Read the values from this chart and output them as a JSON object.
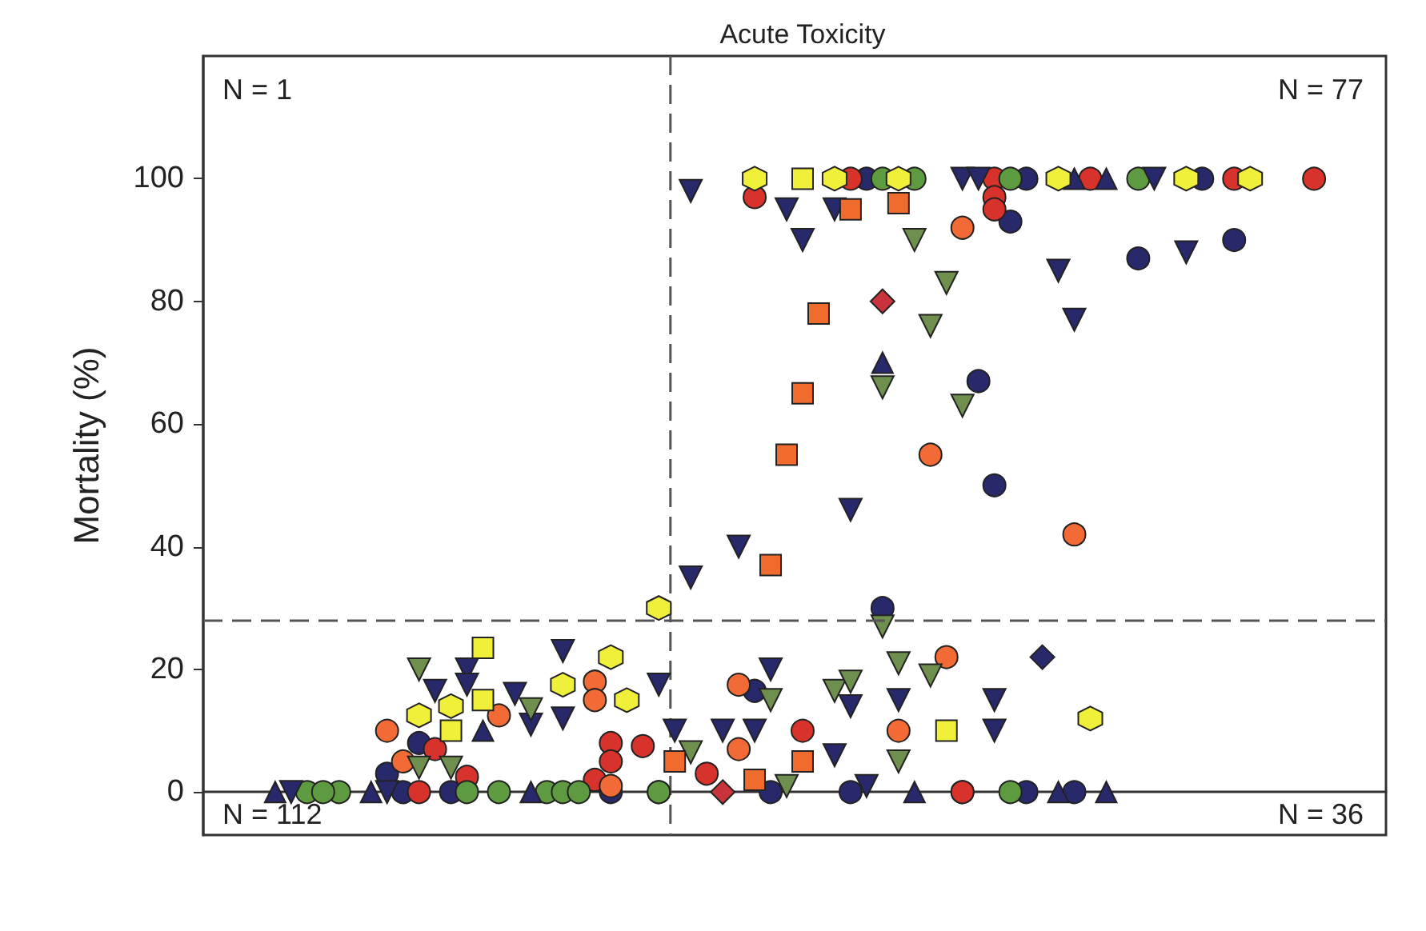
{
  "chart_data": {
    "type": "scatter",
    "title": "Acute Toxicity",
    "ylabel": "Mortality (%)",
    "categories": [
      null,
      null,
      null,
      null,
      null,
      null,
      null,
      null,
      null,
      null,
      null,
      null,
      null,
      null,
      null,
      null,
      null,
      null,
      null,
      null,
      null,
      null,
      null,
      null,
      null,
      null,
      null,
      null,
      null,
      null,
      null,
      null,
      null,
      null,
      null,
      null,
      null,
      null,
      null,
      null,
      null,
      null,
      null,
      null,
      null,
      null,
      null,
      null,
      null,
      null,
      null,
      null,
      null,
      null,
      null,
      null,
      null,
      null,
      null,
      null,
      null,
      null,
      null,
      null,
      null,
      null,
      null,
      null,
      null,
      null,
      null,
      null,
      null,
      null
    ],
    "ylim": [
      -7,
      120
    ],
    "yticks": [
      0,
      20,
      40,
      60,
      80,
      100
    ],
    "grid": false,
    "tick_labels": "y",
    "ref_lines": [
      {
        "axis": "y",
        "value": 28,
        "line_style": "dashed",
        "color": "#555555"
      }
    ],
    "annotations": [
      "N = 1",
      "N = 77",
      "N = 112",
      "N = 36"
    ],
    "series": [
      {
        "marker": "circle",
        "color": "#27296b",
        "values": [
          null,
          null,
          null,
          null,
          null,
          null,
          null,
          null,
          null,
          null,
          null,
          3,
          0,
          8,
          null,
          0,
          null,
          null,
          null,
          null,
          null,
          null,
          null,
          null,
          null,
          0,
          null,
          null,
          0,
          null,
          null,
          null,
          null,
          null,
          16.5,
          0,
          null,
          null,
          null,
          null,
          0,
          100,
          30,
          null,
          null,
          null,
          null,
          0,
          67,
          50,
          93,
          100,
          null,
          null,
          0,
          null,
          null,
          null,
          87,
          null,
          null,
          null,
          100,
          null,
          90,
          null,
          null,
          null,
          null,
          null,
          null,
          null,
          null,
          null
        ]
      },
      {
        "marker": "circle",
        "color": "#27296b",
        "values": [
          null,
          null,
          null,
          null,
          null,
          null,
          null,
          null,
          null,
          null,
          null,
          null,
          null,
          null,
          null,
          null,
          null,
          null,
          null,
          null,
          null,
          null,
          null,
          null,
          null,
          null,
          null,
          null,
          null,
          null,
          null,
          null,
          null,
          null,
          null,
          null,
          null,
          null,
          null,
          null,
          null,
          null,
          null,
          null,
          null,
          null,
          null,
          null,
          null,
          null,
          null,
          0,
          null,
          null,
          null,
          null,
          null,
          null,
          null,
          null,
          null,
          null,
          null,
          null,
          null,
          null,
          null,
          null,
          null,
          null,
          null,
          null,
          null,
          null
        ]
      },
      {
        "marker": "circle",
        "color": "#d8322c",
        "values": [
          null,
          null,
          null,
          null,
          null,
          null,
          null,
          null,
          null,
          null,
          null,
          null,
          null,
          0,
          7,
          null,
          2.5,
          null,
          null,
          null,
          null,
          null,
          null,
          null,
          2,
          8,
          null,
          7.5,
          null,
          null,
          null,
          3,
          null,
          null,
          97,
          null,
          null,
          10,
          null,
          null,
          100,
          null,
          null,
          null,
          null,
          null,
          null,
          0,
          null,
          100,
          null,
          null,
          null,
          null,
          null,
          100,
          null,
          null,
          null,
          null,
          null,
          null,
          null,
          null,
          100,
          null,
          null,
          null,
          null,
          100,
          null,
          null,
          null,
          null
        ]
      },
      {
        "marker": "circle",
        "color": "#d8322c",
        "values": [
          null,
          null,
          null,
          null,
          null,
          null,
          null,
          null,
          null,
          null,
          null,
          null,
          null,
          null,
          null,
          null,
          null,
          null,
          null,
          null,
          null,
          null,
          null,
          null,
          null,
          5,
          null,
          null,
          null,
          null,
          null,
          null,
          null,
          null,
          null,
          null,
          null,
          null,
          null,
          null,
          null,
          null,
          null,
          null,
          null,
          null,
          null,
          null,
          null,
          97,
          null,
          null,
          null,
          null,
          null,
          null,
          null,
          null,
          null,
          null,
          null,
          null,
          null,
          null,
          null,
          null,
          null,
          null,
          null,
          null,
          null,
          null,
          null,
          null
        ]
      },
      {
        "marker": "circle",
        "color": "#d8322c",
        "values": [
          null,
          null,
          null,
          null,
          null,
          null,
          null,
          null,
          null,
          null,
          null,
          null,
          null,
          null,
          null,
          null,
          null,
          null,
          null,
          null,
          null,
          null,
          null,
          null,
          null,
          null,
          null,
          null,
          null,
          null,
          null,
          null,
          null,
          null,
          null,
          null,
          null,
          null,
          null,
          null,
          null,
          null,
          null,
          null,
          null,
          null,
          null,
          null,
          null,
          95,
          null,
          null,
          null,
          null,
          null,
          null,
          null,
          null,
          null,
          null,
          null,
          null,
          null,
          null,
          null,
          null,
          null,
          null,
          null,
          null,
          null,
          null,
          null,
          null
        ]
      },
      {
        "marker": "circle",
        "color": "#f26a36",
        "values": [
          null,
          null,
          null,
          null,
          null,
          null,
          null,
          null,
          null,
          null,
          null,
          10,
          5,
          null,
          null,
          null,
          null,
          null,
          12.5,
          null,
          null,
          null,
          null,
          null,
          18,
          1,
          null,
          null,
          null,
          null,
          null,
          null,
          null,
          17.5,
          null,
          null,
          null,
          null,
          null,
          null,
          null,
          null,
          null,
          10,
          null,
          55,
          22,
          92,
          null,
          null,
          null,
          null,
          null,
          null,
          42,
          null,
          null,
          null,
          null,
          null,
          null,
          null,
          null,
          null,
          null,
          null,
          null,
          null,
          null,
          null,
          null,
          null,
          null,
          null
        ]
      },
      {
        "marker": "circle",
        "color": "#f26a36",
        "values": [
          null,
          null,
          null,
          null,
          null,
          null,
          null,
          null,
          null,
          null,
          null,
          null,
          null,
          null,
          null,
          null,
          null,
          null,
          null,
          null,
          null,
          null,
          null,
          null,
          15,
          null,
          null,
          null,
          null,
          null,
          null,
          null,
          null,
          7,
          null,
          null,
          null,
          null,
          null,
          null,
          null,
          null,
          null,
          null,
          null,
          null,
          null,
          null,
          null,
          null,
          null,
          null,
          null,
          null,
          null,
          null,
          null,
          null,
          null,
          null,
          null,
          null,
          null,
          null,
          null,
          null,
          null,
          null,
          null,
          null,
          null,
          null,
          null,
          null
        ]
      },
      {
        "marker": "circle",
        "color": "#5e9a40",
        "values": [
          null,
          null,
          null,
          null,
          null,
          null,
          0,
          null,
          0,
          null,
          null,
          null,
          null,
          null,
          null,
          null,
          0,
          null,
          0,
          null,
          null,
          0,
          0,
          0,
          null,
          null,
          null,
          null,
          0,
          null,
          null,
          null,
          null,
          null,
          null,
          null,
          null,
          null,
          null,
          null,
          null,
          null,
          100,
          null,
          100,
          null,
          null,
          null,
          null,
          null,
          100,
          null,
          null,
          null,
          null,
          null,
          null,
          null,
          100,
          null,
          null,
          null,
          null,
          null,
          null,
          null,
          null,
          null,
          null,
          null,
          null,
          null,
          null,
          null
        ]
      },
      {
        "marker": "circle",
        "color": "#5e9a40",
        "values": [
          null,
          null,
          null,
          null,
          null,
          null,
          null,
          0,
          null,
          null,
          null,
          null,
          null,
          null,
          null,
          null,
          null,
          null,
          null,
          null,
          null,
          null,
          null,
          null,
          null,
          null,
          null,
          null,
          null,
          null,
          null,
          null,
          null,
          null,
          null,
          null,
          null,
          null,
          null,
          null,
          null,
          null,
          null,
          null,
          null,
          null,
          null,
          null,
          null,
          null,
          0,
          null,
          null,
          null,
          null,
          null,
          null,
          null,
          null,
          null,
          null,
          null,
          null,
          null,
          null,
          null,
          null,
          null,
          null,
          null,
          null,
          null,
          null,
          null
        ]
      },
      {
        "marker": "triangle-down",
        "color": "#27296b",
        "values": [
          null,
          null,
          null,
          null,
          null,
          0,
          null,
          null,
          null,
          null,
          null,
          0,
          null,
          null,
          16.5,
          null,
          20,
          null,
          null,
          16,
          11,
          null,
          23,
          null,
          null,
          null,
          null,
          null,
          17.5,
          10,
          98,
          null,
          10,
          40,
          10,
          20,
          95,
          90,
          null,
          95,
          46,
          1,
          null,
          15,
          null,
          null,
          null,
          100,
          100,
          10,
          null,
          null,
          null,
          85,
          77,
          null,
          null,
          null,
          null,
          100,
          null,
          88,
          null,
          null,
          null,
          null,
          null,
          null,
          null,
          null,
          null,
          null,
          null,
          null
        ]
      },
      {
        "marker": "triangle-down",
        "color": "#27296b",
        "values": [
          null,
          null,
          null,
          null,
          null,
          null,
          null,
          null,
          null,
          null,
          null,
          null,
          null,
          null,
          null,
          null,
          17.5,
          null,
          null,
          null,
          null,
          null,
          12,
          null,
          null,
          null,
          null,
          null,
          null,
          null,
          35,
          null,
          null,
          null,
          null,
          null,
          null,
          null,
          null,
          6,
          14,
          null,
          null,
          null,
          null,
          null,
          null,
          null,
          null,
          15,
          null,
          null,
          null,
          null,
          null,
          null,
          null,
          null,
          null,
          null,
          null,
          null,
          null,
          null,
          null,
          null,
          null,
          null,
          null,
          null,
          null,
          null,
          null,
          null
        ]
      },
      {
        "marker": "triangle-down",
        "color": "#6f8f4f",
        "values": [
          null,
          null,
          null,
          null,
          null,
          null,
          null,
          null,
          null,
          null,
          null,
          null,
          null,
          20,
          null,
          4,
          null,
          null,
          null,
          null,
          13.5,
          null,
          null,
          null,
          null,
          null,
          null,
          null,
          null,
          null,
          6.5,
          null,
          null,
          null,
          null,
          15,
          1,
          null,
          null,
          16.5,
          18,
          null,
          66,
          21,
          90,
          76,
          83,
          63,
          null,
          null,
          null,
          null,
          null,
          null,
          null,
          null,
          null,
          null,
          null,
          null,
          null,
          null,
          null,
          null,
          null,
          null,
          null,
          null,
          null,
          null,
          null,
          null,
          null,
          null
        ]
      },
      {
        "marker": "triangle-down",
        "color": "#6f8f4f",
        "values": [
          null,
          null,
          null,
          null,
          null,
          null,
          null,
          null,
          null,
          null,
          null,
          null,
          null,
          4,
          null,
          null,
          null,
          null,
          null,
          null,
          null,
          null,
          null,
          null,
          null,
          null,
          null,
          null,
          null,
          null,
          null,
          null,
          null,
          null,
          null,
          null,
          null,
          null,
          null,
          null,
          null,
          null,
          27,
          5,
          null,
          19,
          null,
          null,
          null,
          null,
          null,
          null,
          null,
          null,
          null,
          null,
          null,
          null,
          null,
          null,
          null,
          null,
          null,
          null,
          null,
          null,
          null,
          null,
          null,
          null,
          null,
          null,
          null,
          null
        ]
      },
      {
        "marker": "triangle",
        "color": "#27296b",
        "values": [
          null,
          null,
          null,
          null,
          0,
          null,
          null,
          null,
          null,
          null,
          0,
          null,
          null,
          null,
          null,
          null,
          null,
          10,
          null,
          null,
          0,
          null,
          null,
          null,
          null,
          null,
          null,
          null,
          null,
          null,
          null,
          null,
          null,
          null,
          null,
          null,
          null,
          null,
          null,
          null,
          null,
          null,
          70,
          null,
          0,
          null,
          null,
          null,
          null,
          null,
          null,
          null,
          null,
          0,
          100,
          null,
          100,
          null,
          null,
          null,
          null,
          null,
          null,
          null,
          null,
          null,
          null,
          null,
          null,
          null,
          null,
          null,
          null,
          null
        ]
      },
      {
        "marker": "triangle",
        "color": "#27296b",
        "values": [
          null,
          null,
          null,
          null,
          null,
          null,
          null,
          null,
          null,
          null,
          null,
          null,
          null,
          null,
          null,
          null,
          null,
          null,
          null,
          null,
          null,
          null,
          null,
          null,
          null,
          null,
          null,
          null,
          null,
          null,
          null,
          null,
          null,
          null,
          null,
          null,
          null,
          null,
          null,
          null,
          null,
          null,
          null,
          null,
          null,
          null,
          null,
          null,
          null,
          null,
          null,
          null,
          null,
          null,
          null,
          null,
          0,
          null,
          null,
          null,
          null,
          null,
          null,
          null,
          null,
          null,
          null,
          null,
          null,
          null,
          null,
          null,
          null,
          null
        ]
      },
      {
        "color": "#f0f03a",
        "values": [
          null,
          null,
          null,
          null,
          null,
          null,
          null,
          null,
          null,
          null,
          null,
          null,
          null,
          12.5,
          null,
          14,
          null,
          null,
          null,
          null,
          null,
          null,
          17.5,
          null,
          null,
          22,
          15,
          null,
          30,
          null,
          null,
          null,
          null,
          null,
          100,
          null,
          null,
          null,
          null,
          100,
          null,
          null,
          null,
          100,
          null,
          null,
          null,
          null,
          null,
          null,
          null,
          null,
          null,
          100,
          null,
          12,
          null,
          null,
          null,
          null,
          null,
          100,
          null,
          null,
          null,
          100,
          null,
          null,
          null,
          null,
          null,
          null,
          null,
          null
        ]
      },
      {
        "marker": "square",
        "color": "#f0f03a",
        "values": [
          null,
          null,
          null,
          null,
          null,
          null,
          null,
          null,
          null,
          null,
          null,
          null,
          null,
          null,
          null,
          10,
          null,
          23.5,
          null,
          null,
          null,
          null,
          null,
          null,
          null,
          null,
          null,
          null,
          null,
          null,
          null,
          null,
          null,
          null,
          null,
          null,
          null,
          100,
          null,
          null,
          null,
          null,
          null,
          null,
          null,
          null,
          10,
          null,
          null,
          null,
          null,
          null,
          null,
          null,
          null,
          null,
          null,
          null,
          null,
          null,
          null,
          null,
          null,
          null,
          null,
          null,
          null,
          null,
          null,
          null,
          null,
          null,
          null,
          null
        ]
      },
      {
        "marker": "square",
        "color": "#f0f03a",
        "values": [
          null,
          null,
          null,
          null,
          null,
          null,
          null,
          null,
          null,
          null,
          null,
          null,
          null,
          null,
          null,
          null,
          null,
          15,
          null,
          null,
          null,
          null,
          null,
          null,
          null,
          null,
          null,
          null,
          null,
          null,
          null,
          null,
          null,
          null,
          null,
          null,
          null,
          null,
          null,
          null,
          null,
          null,
          null,
          null,
          null,
          null,
          null,
          null,
          null,
          null,
          null,
          null,
          null,
          null,
          null,
          null,
          null,
          null,
          null,
          null,
          null,
          null,
          null,
          null,
          null,
          null,
          null,
          null,
          null,
          null,
          null,
          null,
          null,
          null
        ]
      },
      {
        "marker": "square",
        "color": "#ef6b2e",
        "values": [
          null,
          null,
          null,
          null,
          null,
          null,
          null,
          null,
          null,
          null,
          null,
          null,
          null,
          null,
          null,
          null,
          null,
          null,
          null,
          null,
          null,
          null,
          null,
          null,
          null,
          null,
          null,
          null,
          null,
          5,
          null,
          null,
          null,
          null,
          2,
          37,
          55,
          65,
          78,
          null,
          95,
          null,
          null,
          96,
          null,
          null,
          null,
          null,
          null,
          null,
          null,
          null,
          null,
          null,
          null,
          null,
          null,
          null,
          null,
          null,
          null,
          null,
          null,
          null,
          null,
          null,
          null,
          null,
          null,
          null,
          null,
          null,
          null,
          null
        ]
      },
      {
        "marker": "square",
        "color": "#ef6b2e",
        "values": [
          null,
          null,
          null,
          null,
          null,
          null,
          null,
          null,
          null,
          null,
          null,
          null,
          null,
          null,
          null,
          null,
          null,
          null,
          null,
          null,
          null,
          null,
          null,
          null,
          null,
          null,
          null,
          null,
          null,
          null,
          null,
          null,
          null,
          null,
          null,
          null,
          null,
          5,
          null,
          null,
          null,
          null,
          null,
          null,
          null,
          null,
          null,
          null,
          null,
          null,
          null,
          null,
          null,
          null,
          null,
          null,
          null,
          null,
          null,
          null,
          null,
          null,
          null,
          null,
          null,
          null,
          null,
          null,
          null,
          null,
          null,
          null,
          null,
          null
        ]
      },
      {
        "marker": "diamond",
        "color": "#c9343c",
        "values": [
          null,
          null,
          null,
          null,
          null,
          null,
          null,
          null,
          null,
          null,
          null,
          null,
          null,
          null,
          null,
          null,
          null,
          null,
          null,
          null,
          null,
          null,
          null,
          null,
          null,
          null,
          null,
          null,
          null,
          null,
          null,
          null,
          0,
          null,
          null,
          null,
          null,
          null,
          null,
          null,
          null,
          null,
          80,
          null,
          null,
          null,
          null,
          null,
          null,
          null,
          null,
          null,
          null,
          null,
          null,
          null,
          null,
          null,
          null,
          null,
          null,
          null,
          null,
          null,
          null,
          null,
          null,
          null,
          null,
          null,
          null,
          null,
          null,
          null
        ]
      },
      {
        "marker": "diamond",
        "color": "#27296b",
        "values": [
          null,
          null,
          null,
          null,
          null,
          null,
          null,
          null,
          null,
          null,
          null,
          null,
          null,
          null,
          null,
          null,
          null,
          null,
          null,
          null,
          null,
          null,
          null,
          null,
          null,
          null,
          null,
          null,
          null,
          null,
          null,
          null,
          null,
          null,
          null,
          null,
          null,
          null,
          null,
          null,
          null,
          null,
          null,
          null,
          null,
          null,
          null,
          null,
          null,
          null,
          null,
          null,
          22,
          null,
          null,
          null,
          null,
          null,
          null,
          null,
          null,
          null,
          null,
          null,
          null,
          null,
          null,
          null,
          null,
          null,
          null,
          null,
          null,
          null
        ]
      }
    ]
  }
}
